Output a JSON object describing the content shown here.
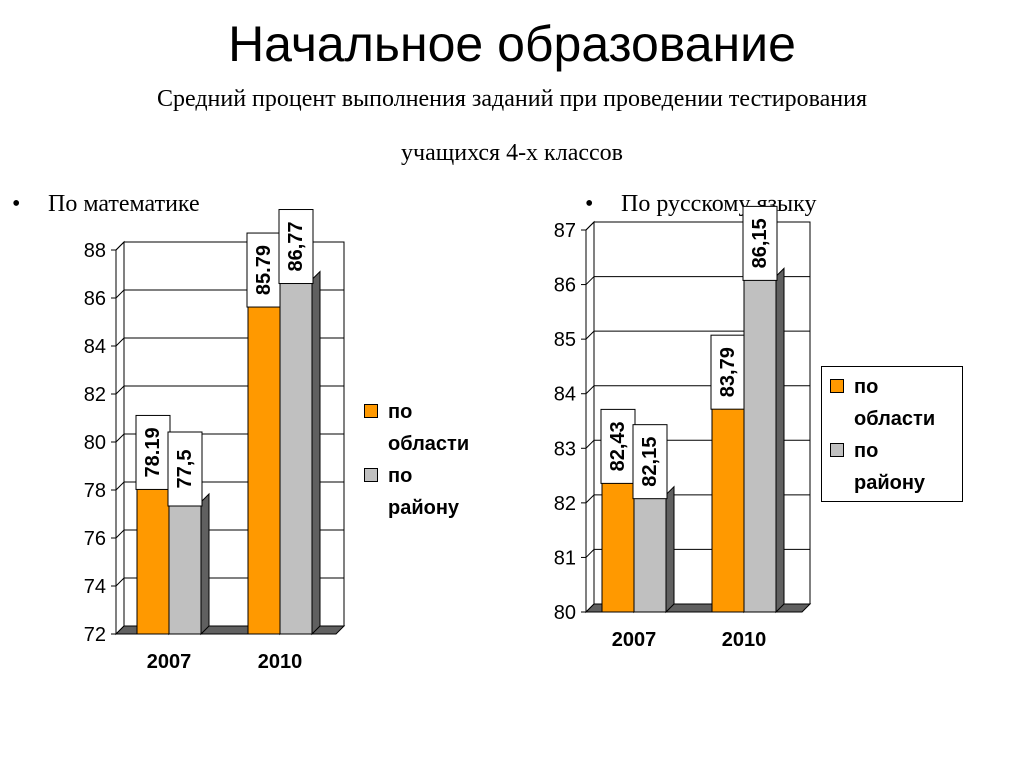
{
  "title": "Начальное образование",
  "subtitle": {
    "line1": "Средний процент выполнения заданий при проведении тестирования",
    "line2": "учащихся 4-х классов"
  },
  "bullets": {
    "symbol": "•",
    "math": "По математике",
    "russian": "По русскому языку"
  },
  "colors": {
    "region": "#FF9900",
    "district": "#C0C0C0",
    "side_region": "#7F4C00",
    "side_district": "#606060",
    "floor": "#606060"
  },
  "legend": {
    "region_line1": "по",
    "region_line2": "области",
    "district_line1": "по",
    "district_line2": "району"
  },
  "chart_data": [
    {
      "type": "bar",
      "name": "math",
      "categories": [
        "2007",
        "2010"
      ],
      "series": [
        {
          "name": "по области",
          "values": [
            78.19,
            85.79
          ],
          "labels": [
            "78.19",
            "85.79"
          ]
        },
        {
          "name": "по району",
          "values": [
            77.5,
            86.77
          ],
          "labels": [
            "77,5",
            "86,77"
          ]
        }
      ],
      "ylim": [
        72,
        88
      ],
      "yticks": [
        "72",
        "74",
        "76",
        "78",
        "80",
        "82",
        "84",
        "86",
        "88"
      ],
      "grid": true,
      "legend_position": "right"
    },
    {
      "type": "bar",
      "name": "russian",
      "categories": [
        "2007",
        "2010"
      ],
      "series": [
        {
          "name": "по области",
          "values": [
            82.43,
            83.79
          ],
          "labels": [
            "82,43",
            "83,79"
          ]
        },
        {
          "name": "по району",
          "values": [
            82.15,
            86.15
          ],
          "labels": [
            "82,15",
            "86,15"
          ]
        }
      ],
      "ylim": [
        80,
        87
      ],
      "yticks": [
        "80",
        "81",
        "82",
        "83",
        "84",
        "85",
        "86",
        "87"
      ],
      "grid": true,
      "legend_position": "right"
    }
  ]
}
